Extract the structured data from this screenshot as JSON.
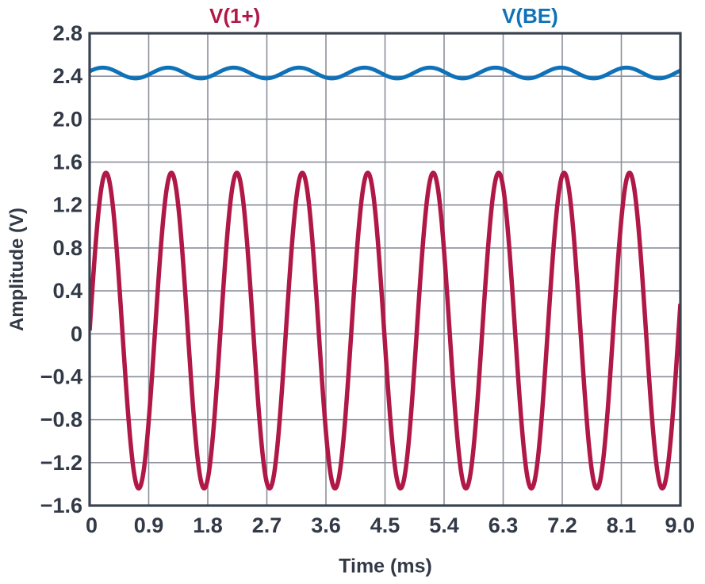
{
  "page": {
    "background": "#FFFFFF"
  },
  "legend": {
    "items": [
      {
        "label": "V(1+)",
        "color": "#B01847"
      },
      {
        "label": "V(BE)",
        "color": "#0F72B8"
      }
    ]
  },
  "axes": {
    "x_title": "Time (ms)",
    "y_title": "Amplitude (V)"
  },
  "chart_data": {
    "type": "line",
    "title": "",
    "xlabel": "Time (ms)",
    "ylabel": "Amplitude (V)",
    "xlim": [
      0,
      9
    ],
    "ylim": [
      -1.6,
      2.8
    ],
    "grid": true,
    "legend_position": "top",
    "x_ticks": {
      "values": [
        0,
        0.9,
        1.8,
        2.7,
        3.6,
        4.5,
        5.4,
        6.3,
        7.2,
        8.1,
        9.0
      ],
      "labels": [
        "0",
        "0.9",
        "1.8",
        "2.7",
        "3.6",
        "4.5",
        "5.4",
        "6.3",
        "7.2",
        "8.1",
        "9.0"
      ]
    },
    "y_ticks": {
      "values": [
        2.8,
        2.4,
        2.0,
        1.6,
        1.2,
        0.8,
        0.4,
        0,
        -0.4,
        -0.8,
        -1.2,
        -1.6
      ],
      "labels": [
        "2.8",
        "2.4",
        "2.0",
        "1.6",
        "1.2",
        "0.8",
        "0.4",
        "0",
        "−0.4",
        "−0.8",
        "−1.2",
        "−1.6"
      ]
    },
    "colors": {
      "frame": "#3A414F",
      "grid": "#8C8F9A",
      "text": "#333A47",
      "background": "#FFFFFF"
    },
    "series": [
      {
        "name": "V(1+)",
        "color": "#B01847",
        "stroke_width": 5.5,
        "waveform": {
          "kind": "sine",
          "amplitude_v": 1.47,
          "offset_v": 0.03,
          "period_ms": 0.997,
          "phase_rad": 0
        }
      },
      {
        "name": "V(BE)",
        "color": "#0F72B8",
        "stroke_width": 5,
        "waveform": {
          "kind": "sine",
          "amplitude_v": 0.05,
          "offset_v": 2.43,
          "period_ms": 0.997,
          "phase_rad": 0.31
        }
      }
    ],
    "sample_step_ms": 0.01
  }
}
